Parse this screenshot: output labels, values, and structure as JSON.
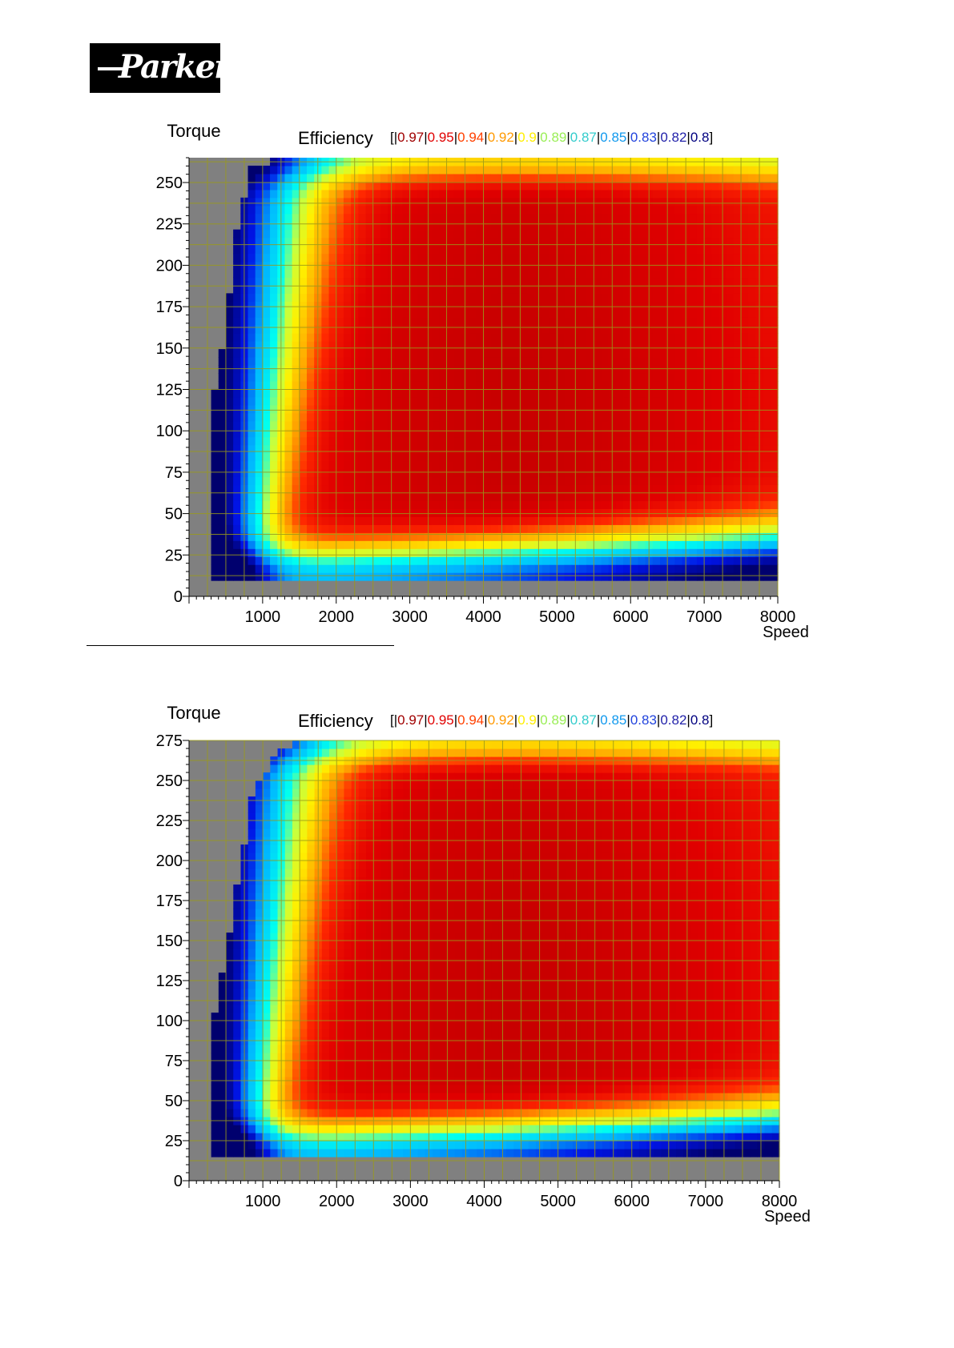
{
  "logo": {
    "text": "Parker"
  },
  "colors": {
    "background_gray": "#808080",
    "grid": "#9a9a1a",
    "scale": [
      "#000080",
      "#0000ff",
      "#00c8ff",
      "#00ffff",
      "#ffff00",
      "#ffa500",
      "#ff2a00",
      "#cc0000"
    ]
  },
  "chart_data": [
    {
      "type": "heatmap",
      "title": "Efficiency",
      "ylabel": "Torque",
      "xlabel": "Speed",
      "xlim": [
        0,
        8000
      ],
      "ylim": [
        0,
        265
      ],
      "x_ticks": [
        1000,
        2000,
        3000,
        4000,
        5000,
        6000,
        7000,
        8000
      ],
      "y_ticks": [
        0,
        25,
        50,
        75,
        100,
        125,
        150,
        175,
        200,
        225,
        250
      ],
      "legend": {
        "open": "[|",
        "close": "]",
        "levels": [
          {
            "label": "0.97",
            "color": "#a00000"
          },
          {
            "label": "0.95",
            "color": "#e00000"
          },
          {
            "label": "0.94",
            "color": "#ff4000"
          },
          {
            "label": "0.92",
            "color": "#ff9900"
          },
          {
            "label": "0.9",
            "color": "#ffee00"
          },
          {
            "label": "0.89",
            "color": "#99ee55"
          },
          {
            "label": "0.87",
            "color": "#33cccc"
          },
          {
            "label": "0.85",
            "color": "#1199ee"
          },
          {
            "label": "0.83",
            "color": "#2244dd"
          },
          {
            "label": "0.82",
            "color": "#2222aa"
          },
          {
            "label": "0.8",
            "color": "#000080"
          }
        ]
      },
      "min_torque": 10,
      "min_speed": 250,
      "max_torque": 265,
      "envelope": [
        [
          250,
          10
        ],
        [
          250,
          85
        ],
        [
          300,
          110
        ],
        [
          500,
          165
        ],
        [
          650,
          220
        ],
        [
          850,
          258
        ],
        [
          1000,
          262
        ],
        [
          1300,
          265
        ],
        [
          8000,
          265
        ]
      ]
    },
    {
      "type": "heatmap",
      "title": "Efficiency",
      "ylabel": "Torque",
      "xlabel": "Speed",
      "xlim": [
        0,
        8000
      ],
      "ylim": [
        0,
        275
      ],
      "x_ticks": [
        1000,
        2000,
        3000,
        4000,
        5000,
        6000,
        7000,
        8000
      ],
      "y_ticks": [
        0,
        25,
        50,
        75,
        100,
        125,
        150,
        175,
        200,
        225,
        250,
        275
      ],
      "legend": {
        "open": "[|",
        "close": "]",
        "levels": [
          {
            "label": "0.97",
            "color": "#a00000"
          },
          {
            "label": "0.95",
            "color": "#e00000"
          },
          {
            "label": "0.94",
            "color": "#ff4000"
          },
          {
            "label": "0.92",
            "color": "#ff9900"
          },
          {
            "label": "0.9",
            "color": "#ffee00"
          },
          {
            "label": "0.89",
            "color": "#99ee55"
          },
          {
            "label": "0.87",
            "color": "#33cccc"
          },
          {
            "label": "0.85",
            "color": "#1199ee"
          },
          {
            "label": "0.83",
            "color": "#2244dd"
          },
          {
            "label": "0.82",
            "color": "#2222aa"
          },
          {
            "label": "0.8",
            "color": "#000080"
          }
        ]
      },
      "min_torque": 14,
      "min_speed": 250,
      "max_torque": 275,
      "envelope": [
        [
          250,
          14
        ],
        [
          250,
          70
        ],
        [
          300,
          90
        ],
        [
          500,
          140
        ],
        [
          600,
          170
        ],
        [
          850,
          240
        ],
        [
          1150,
          266
        ],
        [
          1400,
          272
        ],
        [
          1700,
          275
        ],
        [
          8000,
          275
        ]
      ]
    }
  ]
}
